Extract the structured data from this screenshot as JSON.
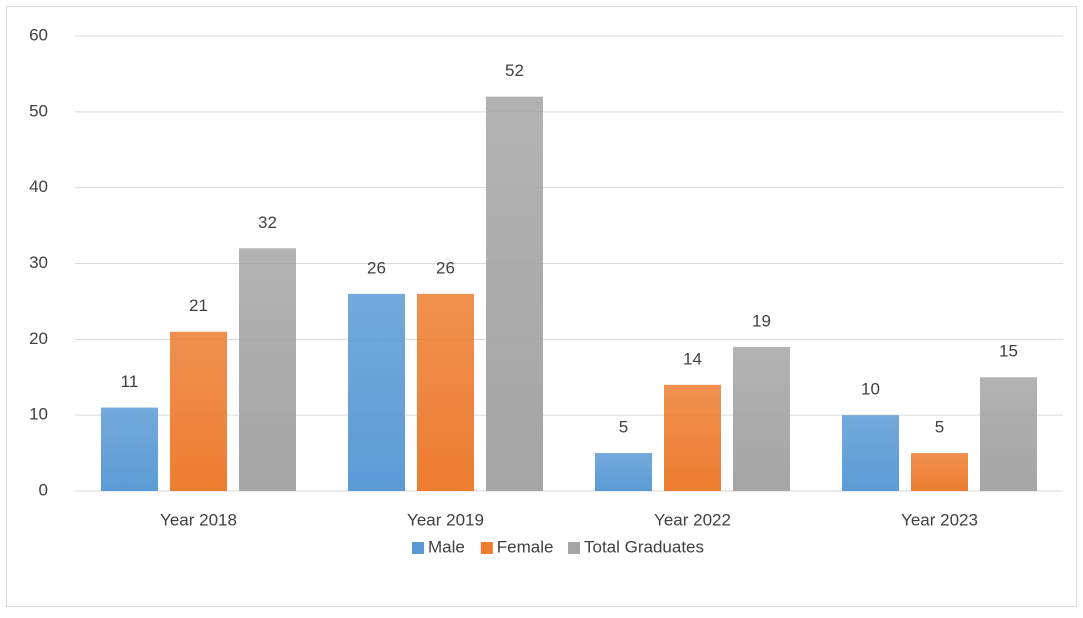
{
  "chart_data": {
    "type": "bar",
    "categories": [
      "Year 2018",
      "Year 2019",
      "Year 2022",
      "Year 2023"
    ],
    "series": [
      {
        "name": "Male",
        "color": "#5b9bd5",
        "values": [
          11,
          26,
          5,
          10
        ]
      },
      {
        "name": "Female",
        "color": "#ed7d31",
        "values": [
          21,
          26,
          14,
          5
        ]
      },
      {
        "name": "Total Graduates",
        "color": "#a5a5a5",
        "values": [
          32,
          52,
          19,
          15
        ]
      }
    ],
    "ylim": [
      0,
      60
    ],
    "yticks": [
      0,
      10,
      20,
      30,
      40,
      50,
      60
    ],
    "grid": true,
    "legend": "bottom"
  }
}
